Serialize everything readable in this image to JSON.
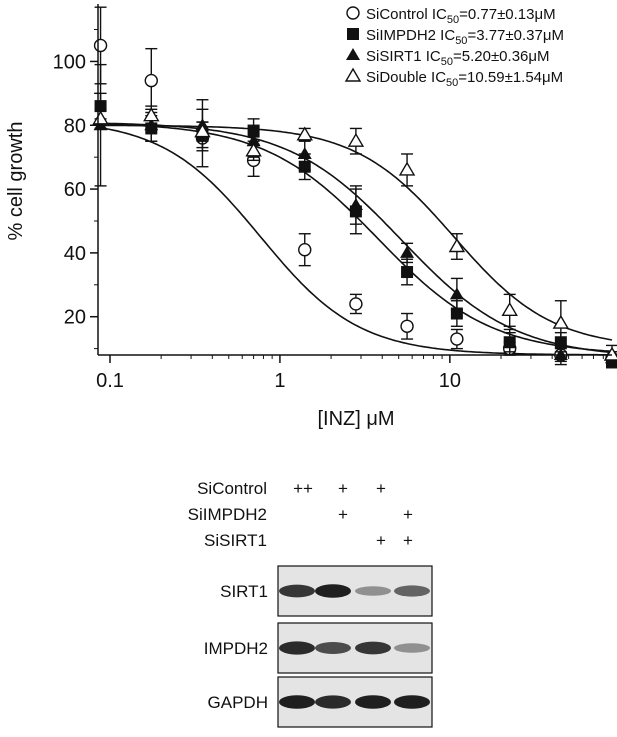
{
  "chart_data": {
    "type": "scatter",
    "xlabel": "[INZ] μM",
    "ylabel": "% cell growth",
    "xscale": "log",
    "xlim": [
      0.085,
      90
    ],
    "ylim": [
      8,
      118
    ],
    "x_ticks": [
      "0.1",
      "1",
      "10"
    ],
    "y_ticks": [
      "20",
      "40",
      "60",
      "80",
      "100"
    ],
    "grid": false,
    "legend": "top-right",
    "series": [
      {
        "name": "SiControl IC50=0.77±0.13μM",
        "name_parts": [
          "SiControl IC",
          "50",
          "=0.77±0.13μM"
        ],
        "marker": "circle-open",
        "x": [
          0.088,
          0.175,
          0.35,
          0.7,
          1.4,
          2.8,
          5.6,
          11,
          22.5,
          45,
          90
        ],
        "y": [
          105,
          94,
          76,
          69,
          41,
          24,
          17,
          13,
          10,
          8,
          7
        ],
        "err": [
          12,
          10,
          9,
          5,
          5,
          3,
          4,
          3,
          2,
          2,
          2
        ],
        "fit": {
          "bottom": 8,
          "top": 82,
          "ic50": 0.77,
          "hill": 1.5
        }
      },
      {
        "name": "SiIMPDH2 IC50=3.77±0.37μM",
        "name_parts": [
          "SiIMPDH2 IC",
          "50",
          "=3.77±0.37μM"
        ],
        "marker": "square-filled",
        "x": [
          0.088,
          0.175,
          0.35,
          0.7,
          1.4,
          2.8,
          5.6,
          11,
          22.5,
          45,
          90
        ],
        "y": [
          86,
          79,
          77,
          78,
          67,
          53,
          34,
          21,
          12,
          12,
          6
        ],
        "err": [
          4,
          4,
          4,
          4,
          4,
          7,
          4,
          4,
          3,
          3,
          2
        ],
        "fit": {
          "bottom": 8,
          "top": 81,
          "ic50": 3.77,
          "hill": 1.3
        }
      },
      {
        "name": "SiSIRT1 IC50=5.20±0.36μM",
        "name_parts": [
          "SiSIRT1 IC",
          "50",
          "=5.20±0.36μM"
        ],
        "marker": "triangle-filled",
        "x": [
          0.088,
          0.175,
          0.35,
          0.7,
          1.4,
          2.8,
          5.6,
          11,
          22.5,
          45,
          90
        ],
        "y": [
          80,
          80,
          80,
          75,
          71,
          55,
          40,
          27,
          12,
          8,
          7
        ],
        "err": [
          19,
          5,
          8,
          5,
          5,
          6,
          3,
          5,
          4,
          3,
          2
        ],
        "fit": {
          "bottom": 7,
          "top": 81,
          "ic50": 5.2,
          "hill": 1.3
        }
      },
      {
        "name": "SiDouble IC50=10.59±1.54μM",
        "name_parts": [
          "SiDouble IC",
          "50",
          "=10.59±1.54μM"
        ],
        "marker": "triangle-open",
        "x": [
          0.088,
          0.175,
          0.35,
          0.7,
          1.4,
          2.8,
          5.6,
          11,
          22.5,
          45,
          90
        ],
        "y": [
          82,
          83,
          78,
          72,
          77,
          75,
          66,
          42,
          22,
          18,
          8
        ],
        "err": [
          3,
          3,
          3,
          3,
          2,
          4,
          5,
          4,
          5,
          7,
          3
        ],
        "fit": {
          "bottom": 10,
          "top": 80,
          "ic50": 10.59,
          "hill": 1.5
        }
      }
    ]
  },
  "blot": {
    "row_labels": [
      "SiControl",
      "SiIMPDH2",
      "SiSIRT1"
    ],
    "signs": [
      [
        "++",
        "+",
        "+",
        ""
      ],
      [
        "",
        "+",
        "",
        "+"
      ],
      [
        "",
        "",
        "+",
        "+"
      ]
    ],
    "panels": [
      {
        "label": "SIRT1",
        "intensities": [
          0.85,
          0.95,
          0.45,
          0.65
        ]
      },
      {
        "label": "IMPDH2",
        "intensities": [
          0.9,
          0.75,
          0.85,
          0.45
        ]
      },
      {
        "label": "GAPDH",
        "intensities": [
          0.95,
          0.9,
          0.95,
          0.95
        ]
      }
    ]
  }
}
